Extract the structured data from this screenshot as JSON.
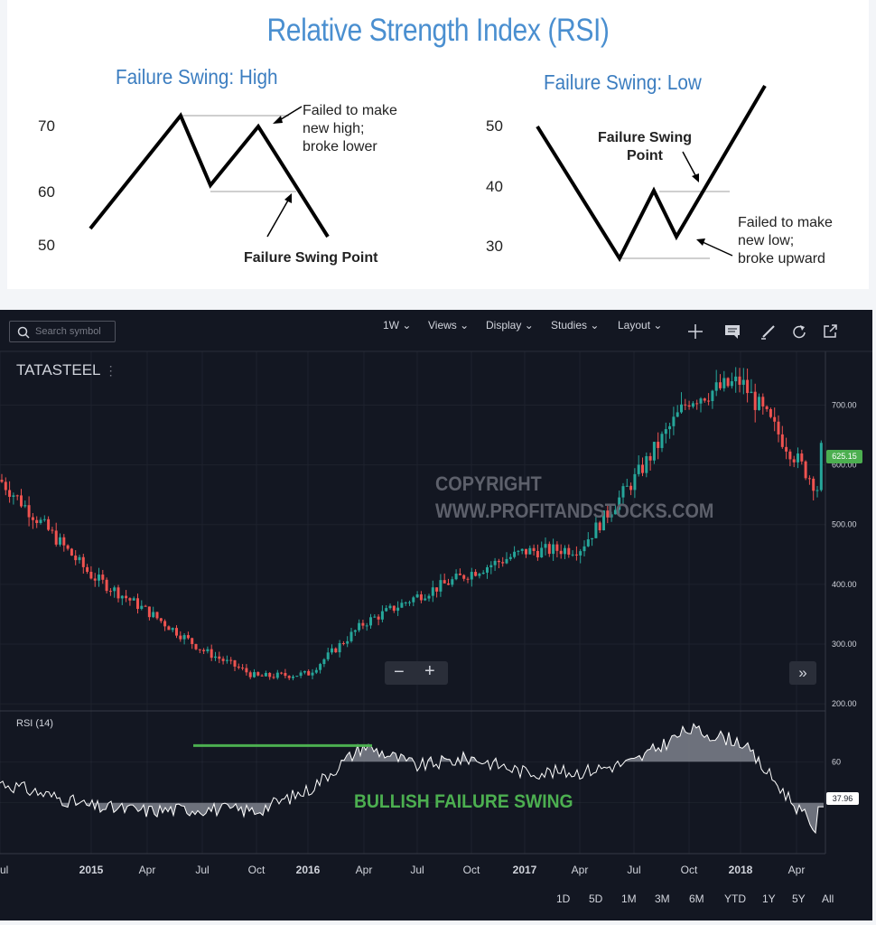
{
  "diagram": {
    "title": "Relative Strength Index (RSI)",
    "high": {
      "heading": "Failure Swing: High",
      "levels": [
        "70",
        "60",
        "50"
      ],
      "note_top": [
        "Failed to make",
        "new high;",
        "broke lower"
      ],
      "note_bottom": "Failure Swing Point"
    },
    "low": {
      "heading": "Failure Swing: Low",
      "levels": [
        "50",
        "40",
        "30"
      ],
      "note_top": [
        "Failure Swing",
        "Point"
      ],
      "note_bottom": [
        "Failed to make",
        "new low;",
        "broke upward"
      ]
    }
  },
  "toolbar": {
    "search_placeholder": "Search symbol",
    "interval": "1W",
    "views": "Views",
    "display": "Display",
    "studies": "Studies",
    "layout": "Layout"
  },
  "symbol": "TATASTEEL",
  "watermark": [
    "COPYRIGHT",
    "WWW.PROFITANDSTOCKS.COM"
  ],
  "rsi_label": "RSI (14)",
  "annotation": "BULLISH FAILURE SWING",
  "last_price": "625.15",
  "last_rsi": "37.96",
  "timeframes": [
    "1D",
    "5D",
    "1M",
    "3M",
    "6M",
    "YTD",
    "1Y",
    "5Y",
    "All"
  ],
  "colors": {
    "up": "#26a69a",
    "down": "#ef5350",
    "annotation": "#4caf50",
    "background": "#131722"
  },
  "chart_data": {
    "type": "candlestick",
    "symbol": "TATASTEEL",
    "interval": "1W",
    "x_ticks": [
      "Jul",
      "2015",
      "Apr",
      "Jul",
      "Oct",
      "2016",
      "Apr",
      "Jul",
      "Oct",
      "2017",
      "Apr",
      "Jul",
      "Oct",
      "2018",
      "Apr"
    ],
    "price_ticks": [
      200,
      300,
      400,
      500,
      600,
      700
    ],
    "price_ylim": [
      188,
      790
    ],
    "approx_close_by_tick": [
      {
        "x": "Jul",
        "close": 575
      },
      {
        "x": "2015",
        "close": 415
      },
      {
        "x": "Apr",
        "close": 355
      },
      {
        "x": "Jul",
        "close": 290
      },
      {
        "x": "Oct",
        "close": 245
      },
      {
        "x": "2016",
        "close": 250
      },
      {
        "x": "Apr",
        "close": 335
      },
      {
        "x": "Jul",
        "close": 380
      },
      {
        "x": "Oct",
        "close": 420
      },
      {
        "x": "2017",
        "close": 455
      },
      {
        "x": "Apr",
        "close": 460
      },
      {
        "x": "Jul",
        "close": 575
      },
      {
        "x": "Oct",
        "close": 710
      },
      {
        "x": "2018",
        "close": 740
      },
      {
        "x": "Apr",
        "close": 610
      }
    ],
    "last_price": 625.15,
    "rsi": {
      "name": "RSI (14)",
      "period": 14,
      "ticks": [
        60
      ],
      "last": 37.96,
      "approx_by_tick": [
        {
          "x": "Jul",
          "rsi": 50
        },
        {
          "x": "2015",
          "rsi": 38
        },
        {
          "x": "Apr",
          "rsi": 36
        },
        {
          "x": "Jul",
          "rsi": 37
        },
        {
          "x": "Oct",
          "rsi": 36
        },
        {
          "x": "2016",
          "rsi": 46
        },
        {
          "x": "Apr",
          "rsi": 68
        },
        {
          "x": "Jul",
          "rsi": 58
        },
        {
          "x": "Oct",
          "rsi": 62
        },
        {
          "x": "2017",
          "rsi": 55
        },
        {
          "x": "Apr",
          "rsi": 55
        },
        {
          "x": "Jul",
          "rsi": 60
        },
        {
          "x": "Oct",
          "rsi": 76
        },
        {
          "x": "2018",
          "rsi": 70
        },
        {
          "x": "Apr",
          "rsi": 38
        }
      ]
    }
  }
}
